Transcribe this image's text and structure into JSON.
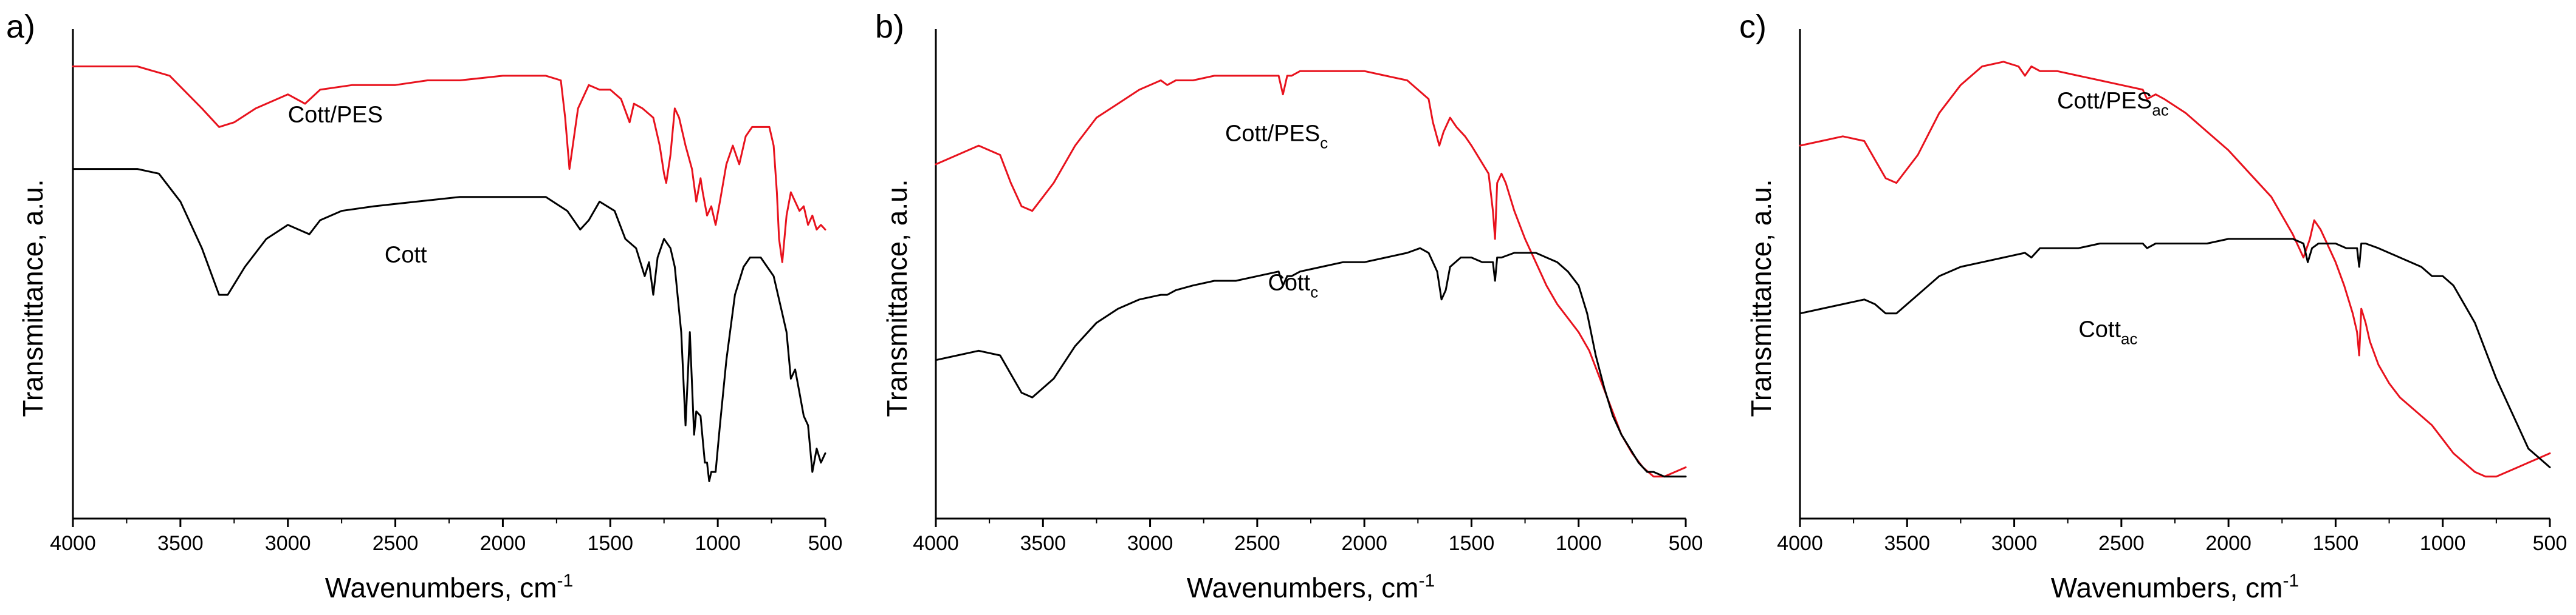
{
  "chart_data": [
    {
      "type": "line",
      "panel_label": "a)",
      "xlabel": "Wavenumbers, cm",
      "xlabel_sup": "-1",
      "ylabel": "Transmittance, a.u.",
      "xlim": [
        4000,
        500
      ],
      "ylim": [
        0,
        105
      ],
      "xticks": [
        "4000",
        "3500",
        "3000",
        "2500",
        "2000",
        "1500",
        "1000",
        "500"
      ],
      "colors": {
        "Cott/PES": "#e8121d",
        "Cott": "#000000"
      },
      "series": [
        {
          "name": "Cott/PES",
          "label_main": "Cott/PES",
          "label_sub": "",
          "label_x": 3000,
          "label_y": 85,
          "x": [
            4000,
            3700,
            3550,
            3400,
            3320,
            3250,
            3150,
            3000,
            2920,
            2850,
            2700,
            2500,
            2350,
            2200,
            2000,
            1800,
            1730,
            1710,
            1690,
            1650,
            1600,
            1550,
            1500,
            1450,
            1410,
            1390,
            1350,
            1300,
            1270,
            1250,
            1240,
            1220,
            1200,
            1180,
            1150,
            1120,
            1100,
            1080,
            1070,
            1050,
            1030,
            1010,
            990,
            960,
            930,
            900,
            870,
            840,
            800,
            760,
            740,
            725,
            715,
            700,
            680,
            660,
            640,
            620,
            600,
            580,
            560,
            540,
            520,
            500
          ],
          "values": [
            97,
            97,
            95,
            88,
            84,
            85,
            88,
            91,
            89,
            92,
            93,
            93,
            94,
            94,
            95,
            95,
            94,
            86,
            75,
            88,
            93,
            92,
            92,
            90,
            85,
            89,
            88,
            86,
            80,
            74,
            72,
            78,
            88,
            86,
            80,
            75,
            68,
            73,
            70,
            65,
            67,
            63,
            68,
            76,
            80,
            76,
            82,
            84,
            84,
            84,
            80,
            70,
            60,
            55,
            65,
            70,
            68,
            66,
            67,
            63,
            65,
            62,
            63,
            62
          ]
        },
        {
          "name": "Cott",
          "label_main": "Cott",
          "label_sub": "",
          "label_x": 2550,
          "label_y": 55,
          "x": [
            4000,
            3700,
            3600,
            3500,
            3400,
            3320,
            3280,
            3200,
            3100,
            3000,
            2950,
            2900,
            2850,
            2750,
            2600,
            2400,
            2200,
            2000,
            1800,
            1700,
            1640,
            1600,
            1550,
            1480,
            1430,
            1380,
            1340,
            1320,
            1300,
            1280,
            1250,
            1220,
            1200,
            1170,
            1150,
            1130,
            1110,
            1100,
            1080,
            1060,
            1050,
            1040,
            1030,
            1010,
            990,
            960,
            920,
            880,
            850,
            820,
            800,
            770,
            740,
            700,
            680,
            660,
            640,
            620,
            600,
            580,
            560,
            540,
            520,
            500
          ],
          "values": [
            75,
            75,
            74,
            68,
            58,
            48,
            48,
            54,
            60,
            63,
            62,
            61,
            64,
            66,
            67,
            68,
            69,
            69,
            69,
            66,
            62,
            64,
            68,
            66,
            60,
            58,
            52,
            55,
            48,
            56,
            60,
            58,
            54,
            40,
            20,
            40,
            18,
            23,
            22,
            12,
            12,
            8,
            10,
            10,
            20,
            34,
            48,
            54,
            56,
            56,
            56,
            54,
            52,
            44,
            40,
            30,
            32,
            27,
            22,
            20,
            10,
            15,
            12,
            14
          ]
        }
      ]
    },
    {
      "type": "line",
      "panel_label": "b)",
      "xlabel": "Wavenumbers, cm",
      "xlabel_sup": "-1",
      "ylabel": "Transmittance, a.u.",
      "xlim": [
        4000,
        500
      ],
      "ylim": [
        0,
        105
      ],
      "xticks": [
        "4000",
        "3500",
        "3000",
        "2500",
        "2000",
        "1500",
        "1000",
        "500"
      ],
      "colors": {
        "Cott/PES_c": "#e8121d",
        "Cott_c": "#000000"
      },
      "series": [
        {
          "name": "Cott/PES_c",
          "label_main": "Cott/PES",
          "label_sub": "c",
          "label_x": 2650,
          "label_y": 81,
          "x": [
            4000,
            3900,
            3800,
            3700,
            3650,
            3600,
            3550,
            3450,
            3350,
            3250,
            3150,
            3050,
            2950,
            2920,
            2880,
            2800,
            2700,
            2600,
            2500,
            2400,
            2380,
            2360,
            2340,
            2300,
            2200,
            2100,
            2000,
            1900,
            1800,
            1700,
            1680,
            1650,
            1630,
            1600,
            1570,
            1530,
            1500,
            1460,
            1420,
            1400,
            1390,
            1380,
            1360,
            1340,
            1300,
            1250,
            1200,
            1150,
            1100,
            1050,
            1000,
            950,
            900,
            850,
            800,
            750,
            700,
            650,
            600,
            550,
            500
          ],
          "values": [
            76,
            78,
            80,
            78,
            72,
            67,
            66,
            72,
            80,
            86,
            89,
            92,
            94,
            93,
            94,
            94,
            95,
            95,
            95,
            95,
            91,
            95,
            95,
            96,
            96,
            96,
            96,
            95,
            94,
            90,
            85,
            80,
            83,
            86,
            84,
            82,
            80,
            77,
            74,
            66,
            60,
            72,
            74,
            72,
            66,
            60,
            55,
            50,
            46,
            43,
            40,
            36,
            30,
            24,
            18,
            14,
            11,
            9,
            9,
            10,
            11
          ]
        },
        {
          "name": "Cott_c",
          "label_main": "Cott",
          "label_sub": "c",
          "label_x": 2450,
          "label_y": 49,
          "x": [
            4000,
            3900,
            3800,
            3700,
            3650,
            3600,
            3550,
            3450,
            3350,
            3250,
            3150,
            3050,
            2950,
            2920,
            2880,
            2800,
            2700,
            2600,
            2500,
            2400,
            2380,
            2360,
            2340,
            2300,
            2200,
            2100,
            2000,
            1900,
            1800,
            1740,
            1700,
            1660,
            1640,
            1620,
            1600,
            1550,
            1500,
            1450,
            1420,
            1400,
            1390,
            1380,
            1360,
            1300,
            1200,
            1100,
            1050,
            1000,
            960,
            920,
            880,
            840,
            800,
            760,
            720,
            680,
            650,
            600,
            550,
            500
          ],
          "values": [
            34,
            35,
            36,
            35,
            31,
            27,
            26,
            30,
            37,
            42,
            45,
            47,
            48,
            48,
            49,
            50,
            51,
            51,
            52,
            53,
            50,
            52,
            52,
            53,
            54,
            55,
            55,
            56,
            57,
            58,
            57,
            53,
            47,
            49,
            54,
            56,
            56,
            55,
            55,
            55,
            51,
            56,
            56,
            57,
            57,
            55,
            53,
            50,
            44,
            35,
            28,
            22,
            18,
            15,
            12,
            10,
            10,
            9,
            9,
            9
          ]
        }
      ]
    },
    {
      "type": "line",
      "panel_label": "c)",
      "xlabel": "Wavenumbers, cm",
      "xlabel_sup": "-1",
      "ylabel": "Transmittance, a.u.",
      "xlim": [
        4000,
        500
      ],
      "ylim": [
        0,
        105
      ],
      "xticks": [
        "4000",
        "3500",
        "3000",
        "2500",
        "2000",
        "1500",
        "1000",
        "500"
      ],
      "colors": {
        "Cott/PES_ac": "#e8121d",
        "Cott_ac": "#000000"
      },
      "series": [
        {
          "name": "Cott/PES_ac",
          "label_main": "Cott/PES",
          "label_sub": "ac",
          "label_x": 2800,
          "label_y": 88,
          "x": [
            4000,
            3900,
            3800,
            3700,
            3650,
            3600,
            3550,
            3450,
            3350,
            3250,
            3150,
            3050,
            2980,
            2950,
            2920,
            2880,
            2800,
            2700,
            2600,
            2500,
            2400,
            2380,
            2340,
            2300,
            2200,
            2100,
            2000,
            1900,
            1800,
            1700,
            1670,
            1650,
            1620,
            1600,
            1570,
            1530,
            1500,
            1460,
            1420,
            1400,
            1390,
            1380,
            1360,
            1340,
            1300,
            1250,
            1200,
            1150,
            1100,
            1050,
            1000,
            950,
            900,
            850,
            800,
            750,
            700,
            650,
            600,
            550,
            500
          ],
          "values": [
            80,
            81,
            82,
            81,
            77,
            73,
            72,
            78,
            87,
            93,
            97,
            98,
            97,
            95,
            97,
            96,
            96,
            95,
            94,
            93,
            92,
            90,
            91,
            90,
            87,
            83,
            79,
            74,
            69,
            61,
            58,
            56,
            60,
            64,
            62,
            58,
            55,
            50,
            44,
            40,
            35,
            45,
            42,
            38,
            33,
            29,
            26,
            24,
            22,
            20,
            17,
            14,
            12,
            10,
            9,
            9,
            10,
            11,
            12,
            13,
            14
          ]
        },
        {
          "name": "Cott_ac",
          "label_main": "Cott",
          "label_sub": "ac",
          "label_x": 2700,
          "label_y": 39,
          "x": [
            4000,
            3900,
            3800,
            3700,
            3650,
            3600,
            3550,
            3450,
            3350,
            3250,
            3150,
            3050,
            2950,
            2920,
            2880,
            2800,
            2700,
            2600,
            2500,
            2400,
            2380,
            2340,
            2300,
            2200,
            2100,
            2000,
            1900,
            1800,
            1740,
            1700,
            1650,
            1630,
            1610,
            1580,
            1550,
            1500,
            1450,
            1420,
            1400,
            1390,
            1380,
            1360,
            1300,
            1200,
            1100,
            1050,
            1000,
            950,
            900,
            850,
            800,
            750,
            700,
            650,
            600,
            550,
            500
          ],
          "values": [
            44,
            45,
            46,
            47,
            46,
            44,
            44,
            48,
            52,
            54,
            55,
            56,
            57,
            56,
            58,
            58,
            58,
            59,
            59,
            59,
            58,
            59,
            59,
            59,
            59,
            60,
            60,
            60,
            60,
            60,
            59,
            55,
            58,
            59,
            59,
            59,
            58,
            58,
            58,
            54,
            59,
            59,
            58,
            56,
            54,
            52,
            52,
            50,
            46,
            42,
            36,
            30,
            25,
            20,
            15,
            13,
            11
          ]
        }
      ]
    }
  ]
}
